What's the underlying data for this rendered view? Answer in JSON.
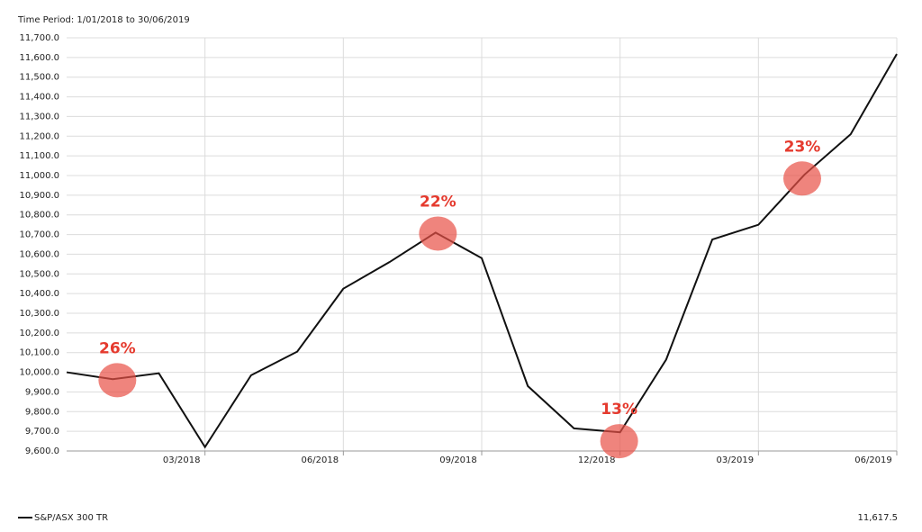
{
  "chart_data": {
    "type": "line",
    "subtitle": "Time Period: 1/01/2018 to 30/06/2019",
    "categories": [
      null,
      null,
      null,
      "03/2018",
      null,
      null,
      "06/2018",
      null,
      null,
      "09/2018",
      null,
      null,
      "12/2018",
      null,
      null,
      "03/2019",
      null,
      null,
      "06/2019"
    ],
    "series": [
      {
        "name": "S&P/ASX 300 TR",
        "color": "#111111",
        "values": [
          10000,
          9965,
          9995,
          9620,
          9985,
          10105,
          10425,
          10560,
          10710,
          10580,
          9930,
          9715,
          9695,
          10065,
          10675,
          10750,
          11005,
          11210,
          11617.5
        ],
        "last_value_label": "11,617.5"
      }
    ],
    "ylim": [
      9600,
      11700
    ],
    "yticks": [
      {
        "value": 9600,
        "label": "9,600.0"
      },
      {
        "value": 9700,
        "label": "9,700.0"
      },
      {
        "value": 9800,
        "label": "9,800.0"
      },
      {
        "value": 9900,
        "label": "9,900.0"
      },
      {
        "value": 10000,
        "label": "10,000.0"
      },
      {
        "value": 10100,
        "label": "10,100.0"
      },
      {
        "value": 10200,
        "label": "10,200.0"
      },
      {
        "value": 10300,
        "label": "10,300.0"
      },
      {
        "value": 10400,
        "label": "10,400.0"
      },
      {
        "value": 10500,
        "label": "10,500.0"
      },
      {
        "value": 10600,
        "label": "10,600.0"
      },
      {
        "value": 10700,
        "label": "10,700.0"
      },
      {
        "value": 10800,
        "label": "10,800.0"
      },
      {
        "value": 10900,
        "label": "10,900.0"
      },
      {
        "value": 11000,
        "label": "11,000.0"
      },
      {
        "value": 11100,
        "label": "11,100.0"
      },
      {
        "value": 11200,
        "label": "11,200.0"
      },
      {
        "value": 11300,
        "label": "11,300.0"
      },
      {
        "value": 11400,
        "label": "11,400.0"
      },
      {
        "value": 11500,
        "label": "11,500.0"
      },
      {
        "value": 11600,
        "label": "11,600.0"
      },
      {
        "value": 11700,
        "label": "11,700.0"
      }
    ],
    "grid": true,
    "annotations": [
      {
        "text": "26%",
        "x": 1.1,
        "y": 9960
      },
      {
        "text": "22%",
        "x": 8.05,
        "y": 10705
      },
      {
        "text": "13%",
        "x": 11.98,
        "y": 9650
      },
      {
        "text": "23%",
        "x": 15.95,
        "y": 10985
      }
    ]
  }
}
